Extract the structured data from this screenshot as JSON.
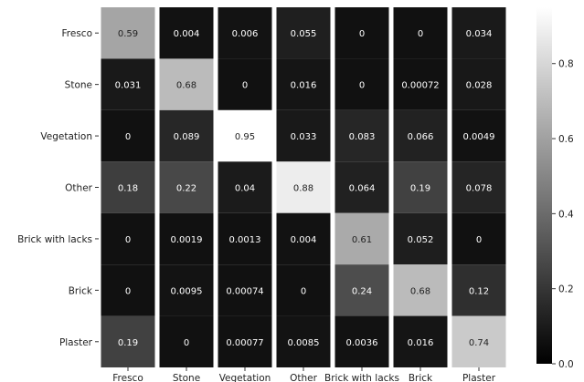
{
  "chart_data": {
    "type": "heatmap",
    "title": "",
    "xlabel": "",
    "ylabel": "",
    "row_labels": [
      "Fresco",
      "Stone",
      "Vegetation",
      "Other",
      "Brick with lacks",
      "Brick",
      "Plaster"
    ],
    "col_labels": [
      "Fresco",
      "Stone",
      "Vegetation",
      "Other",
      "Brick with lacks",
      "Brick",
      "Plaster"
    ],
    "values": [
      [
        0.59,
        0.004,
        0.006,
        0.055,
        0,
        0,
        0.034
      ],
      [
        0.031,
        0.68,
        0,
        0.016,
        0,
        0.00072,
        0.028
      ],
      [
        0,
        0.089,
        0.95,
        0.033,
        0.083,
        0.066,
        0.0049
      ],
      [
        0.18,
        0.22,
        0.04,
        0.88,
        0.064,
        0.19,
        0.078
      ],
      [
        0,
        0.0019,
        0.0013,
        0.004,
        0.61,
        0.052,
        0
      ],
      [
        0,
        0.0095,
        0.00074,
        0,
        0.24,
        0.68,
        0.12
      ],
      [
        0.19,
        0,
        0.00077,
        0.0085,
        0.0036,
        0.016,
        0.74
      ]
    ],
    "value_labels": [
      [
        "0.59",
        "0.004",
        "0.006",
        "0.055",
        "0",
        "0",
        "0.034"
      ],
      [
        "0.031",
        "0.68",
        "0",
        "0.016",
        "0",
        "0.00072",
        "0.028"
      ],
      [
        "0",
        "0.089",
        "0.95",
        "0.033",
        "0.083",
        "0.066",
        "0.0049"
      ],
      [
        "0.18",
        "0.22",
        "0.04",
        "0.88",
        "0.064",
        "0.19",
        "0.078"
      ],
      [
        "0",
        "0.0019",
        "0.0013",
        "0.004",
        "0.61",
        "0.052",
        "0"
      ],
      [
        "0",
        "0.0095",
        "0.00074",
        "0",
        "0.24",
        "0.68",
        "0.12"
      ],
      [
        "0.19",
        "0",
        "0.00077",
        "0.0085",
        "0.0036",
        "0.016",
        "0.74"
      ]
    ],
    "colorbar": {
      "range": [
        0,
        0.95
      ],
      "ticks": [
        0.0,
        0.2,
        0.4,
        0.6,
        0.8
      ],
      "tick_labels": [
        "0.0",
        "0.2",
        "0.4",
        "0.6",
        "0.8"
      ],
      "colormap": "gray"
    },
    "grid": false,
    "cell_separators": "white vertical gaps between columns"
  }
}
